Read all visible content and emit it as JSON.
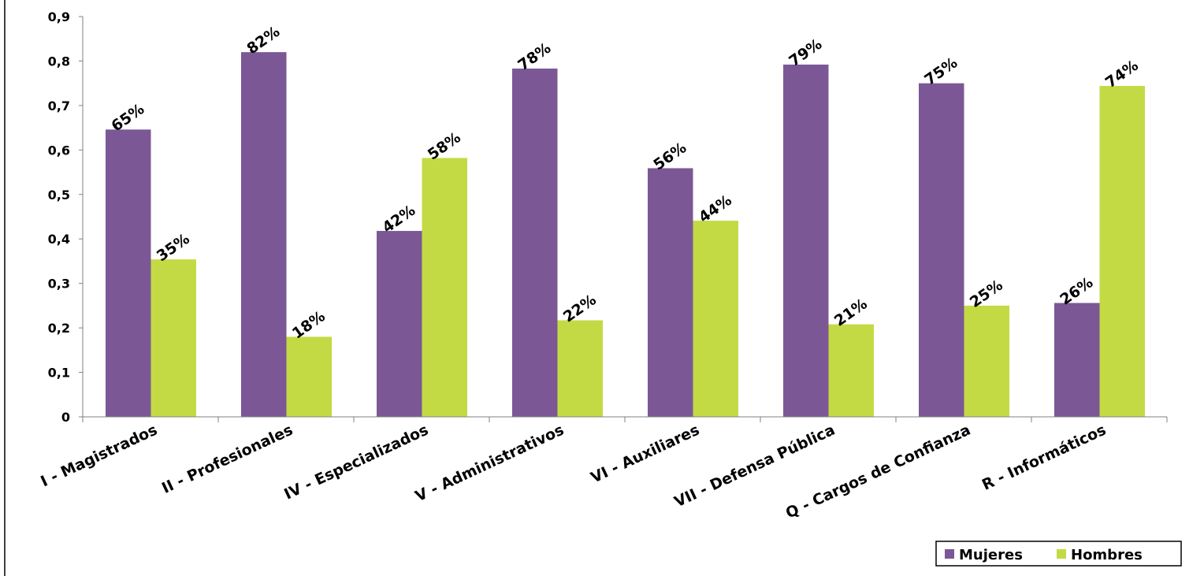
{
  "chart_data": {
    "type": "bar",
    "categories": [
      "I - Magistrados",
      "II - Profesionales",
      "IV - Especializados",
      "V - Administrativos",
      "VI - Auxiliares",
      "VII - Defensa Pública",
      "Q - Cargos de Confianza",
      "R - Informáticos"
    ],
    "series": [
      {
        "name": "Mujeres",
        "color": "#7b5895",
        "values": [
          0.646,
          0.82,
          0.418,
          0.783,
          0.559,
          0.792,
          0.75,
          0.256
        ],
        "labels": [
          "65%",
          "82%",
          "42%",
          "78%",
          "56%",
          "79%",
          "75%",
          "26%"
        ]
      },
      {
        "name": "Hombres",
        "color": "#c4da44",
        "values": [
          0.354,
          0.18,
          0.582,
          0.217,
          0.441,
          0.208,
          0.25,
          0.744
        ],
        "labels": [
          "35%",
          "18%",
          "58%",
          "22%",
          "44%",
          "21%",
          "25%",
          "74%"
        ]
      }
    ],
    "yticks": [
      "0",
      "0,1",
      "0,2",
      "0,3",
      "0,4",
      "0,5",
      "0,6",
      "0,7",
      "0,8",
      "0,9"
    ],
    "ylim": [
      0,
      0.9
    ],
    "grid": false,
    "legend_position": "bottom-right",
    "title": "",
    "xlabel": "",
    "ylabel": ""
  }
}
